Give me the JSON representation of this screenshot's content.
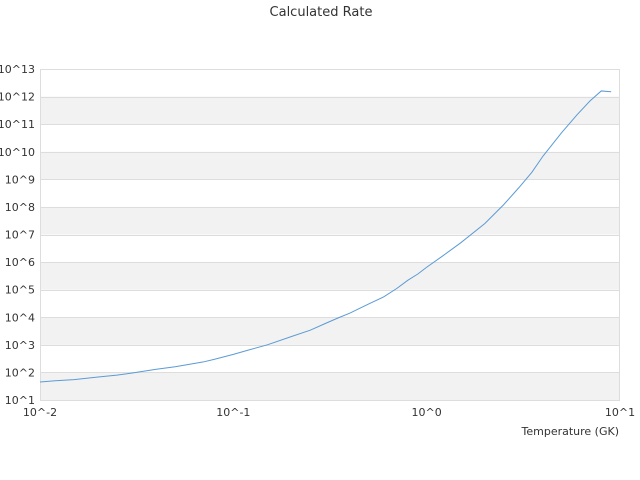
{
  "chart_data": {
    "type": "line",
    "title": "Calculated Rate",
    "xlabel": "Temperature (GK)",
    "ylabel": "",
    "x_scale": "log",
    "y_scale": "log",
    "xlim": [
      0.01,
      10
    ],
    "ylim": [
      10,
      10000000000000.0
    ],
    "x_tick_labels": [
      "10^-2",
      "10^-1",
      "10^0",
      "10^1"
    ],
    "y_tick_labels": [
      "10^1",
      "10^2",
      "10^3",
      "10^4",
      "10^5",
      "10^6",
      "10^7",
      "10^8",
      "10^9",
      "10^10",
      "10^11",
      "10^12",
      "10^13"
    ],
    "grid": "horizontal alternating bands",
    "legend": "none",
    "colors": {
      "series": "#5b9bd5",
      "band": "#f2f2f2",
      "grid": "#dddddd",
      "text": "#333333"
    },
    "series": [
      {
        "x": [
          0.01,
          0.012,
          0.015,
          0.02,
          0.025,
          0.03,
          0.04,
          0.05,
          0.06,
          0.07,
          0.08,
          0.1,
          0.12,
          0.15,
          0.2,
          0.25,
          0.3,
          0.35,
          0.4,
          0.5,
          0.6,
          0.7,
          0.8,
          0.9,
          1.0,
          1.2,
          1.5,
          2.0,
          2.5,
          3.0,
          3.5,
          4.0,
          5.0,
          6.0,
          7.0,
          8.0,
          9.0
        ],
        "y": [
          45,
          50,
          55,
          68,
          80,
          95,
          130,
          160,
          200,
          240,
          300,
          450,
          650,
          1000,
          2000,
          3400,
          6000,
          9600,
          14000,
          30000,
          55000,
          110000,
          220000,
          370000,
          650000,
          1600000,
          5000000,
          25000000,
          120000000.0,
          500000000.0,
          1800000000.0,
          7000000000.0,
          50000000000.0,
          220000000000.0,
          700000000000.0,
          1600000000000.0,
          1500000000000.0
        ]
      }
    ]
  }
}
